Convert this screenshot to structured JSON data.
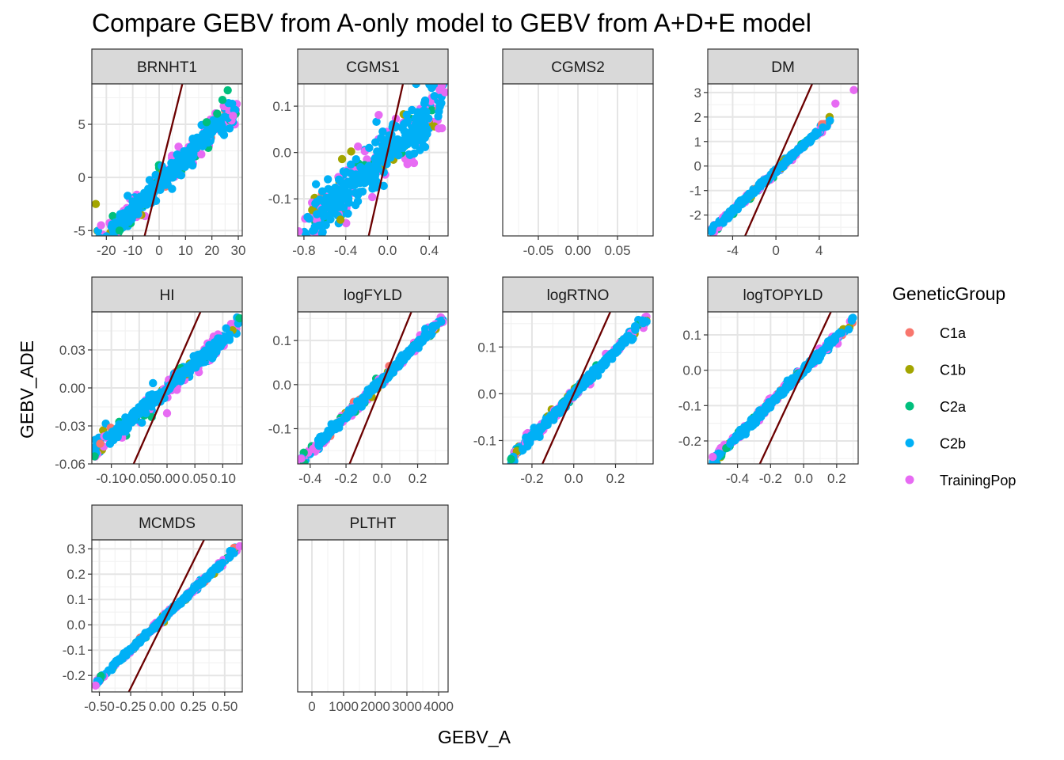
{
  "chart_data": {
    "type": "scatter",
    "title": "Compare GEBV from A-only model to GEBV from A+D+E model",
    "xlabel": "GEBV_A",
    "ylabel": "GEBV_ADE",
    "grid": true,
    "legend": {
      "title": "GeneticGroup",
      "placement": "right",
      "entries": [
        {
          "name": "C1a",
          "color": "#F8766D"
        },
        {
          "name": "C1b",
          "color": "#A3A500"
        },
        {
          "name": "C2a",
          "color": "#00BF7D"
        },
        {
          "name": "C2b",
          "color": "#00B0F6"
        },
        {
          "name": "TrainingPop",
          "color": "#E76BF3"
        }
      ]
    },
    "reference_line_color": "#6B0000",
    "panels": [
      {
        "name": "BRNHT1",
        "xlim": [
          -25.5,
          31.5
        ],
        "ylim": [
          -5.5,
          8.8
        ],
        "xticks": [
          -20,
          -10,
          0,
          10,
          20,
          30
        ],
        "xtick_labels": [
          "-20",
          "-10",
          "0",
          "10",
          "20",
          "30"
        ],
        "yticks": [
          -5,
          0,
          5
        ],
        "ytick_labels": [
          "-5",
          "0",
          "5"
        ],
        "cloud": {
          "x": [
            -24,
            30
          ],
          "slope": 0.25,
          "intercept": -0.6,
          "spread": 0.7
        },
        "line": {
          "slope": 1,
          "intercept": 0
        },
        "extra_points": [
          {
            "x": -24,
            "y": -2.5,
            "group": "C1b"
          },
          {
            "x": -22,
            "y": -4.5,
            "group": "TrainingPop"
          },
          {
            "x": -15,
            "y": -5.0,
            "group": "C2a"
          },
          {
            "x": 22,
            "y": 6.0,
            "group": "C2a"
          },
          {
            "x": 24,
            "y": 7.3,
            "group": "C2a"
          },
          {
            "x": 26,
            "y": 8.2,
            "group": "C2a"
          },
          {
            "x": 28,
            "y": 5.8,
            "group": "TrainingPop"
          },
          {
            "x": 18,
            "y": 5.2,
            "group": "C2a"
          }
        ]
      },
      {
        "name": "CGMS1",
        "xlim": [
          -0.86,
          0.58
        ],
        "ylim": [
          -0.18,
          0.148
        ],
        "xticks": [
          -0.8,
          -0.4,
          0.0,
          0.4
        ],
        "xtick_labels": [
          "-0.8",
          "-0.4",
          "0.0",
          "0.4"
        ],
        "yticks": [
          -0.1,
          0.0,
          0.1
        ],
        "ytick_labels": [
          "-0.1",
          "0.0",
          "0.1"
        ],
        "cloud": {
          "x": [
            -0.8,
            0.55
          ],
          "slope": 0.2,
          "intercept": 0.0,
          "spread": 0.035
        },
        "line": {
          "slope": 1,
          "intercept": 0
        },
        "extra_points": [
          {
            "x": -0.85,
            "y": -0.17,
            "group": "TrainingPop"
          },
          {
            "x": -0.45,
            "y": -0.145,
            "group": "C1b"
          },
          {
            "x": 0.5,
            "y": 0.135,
            "group": "TrainingPop"
          },
          {
            "x": 0.55,
            "y": 0.13,
            "group": "TrainingPop"
          }
        ]
      },
      {
        "name": "CGMS2",
        "xlim": [
          -0.095,
          0.095
        ],
        "ylim": [
          -1,
          1
        ],
        "xticks": [
          -0.05,
          0.0,
          0.05
        ],
        "xtick_labels": [
          "-0.05",
          "0.00",
          "0.05"
        ],
        "yticks": [],
        "ytick_labels": [],
        "cloud": null,
        "line": null,
        "extra_points": []
      },
      {
        "name": "DM",
        "xlim": [
          -6.3,
          7.6
        ],
        "ylim": [
          -2.85,
          3.35
        ],
        "xticks": [
          -4,
          0,
          4
        ],
        "xtick_labels": [
          "-4",
          "0",
          "4"
        ],
        "yticks": [
          -2,
          -1,
          0,
          1,
          2,
          3
        ],
        "ytick_labels": [
          "-2",
          "-1",
          "0",
          "1",
          "2",
          "3"
        ],
        "cloud": {
          "x": [
            -6,
            5
          ],
          "slope": 0.41,
          "intercept": -0.2,
          "spread": 0.07
        },
        "line": {
          "slope": 1,
          "intercept": 0
        },
        "extra_points": [
          {
            "x": 7.2,
            "y": 3.1,
            "group": "TrainingPop"
          },
          {
            "x": 5.5,
            "y": 2.55,
            "group": "TrainingPop"
          }
        ]
      },
      {
        "name": "HI",
        "xlim": [
          -0.135,
          0.135
        ],
        "ylim": [
          -0.06,
          0.06
        ],
        "xticks": [
          -0.1,
          -0.05,
          0.0,
          0.05,
          0.1
        ],
        "xtick_labels": [
          "-0.10",
          "-0.05",
          "0.00",
          "0.05",
          "0.10"
        ],
        "yticks": [
          -0.06,
          -0.03,
          0.0,
          0.03
        ],
        "ytick_labels": [
          "-0.06",
          "-0.03",
          "0.00",
          "0.03"
        ],
        "cloud": {
          "x": [
            -0.13,
            0.13
          ],
          "slope": 0.38,
          "intercept": 0.0,
          "spread": 0.004
        },
        "line": {
          "slope": 1,
          "intercept": 0
        },
        "extra_points": [
          {
            "x": -0.13,
            "y": -0.054,
            "group": "C2a"
          },
          {
            "x": -0.12,
            "y": -0.044,
            "group": "C1a"
          },
          {
            "x": 0.0,
            "y": -0.02,
            "group": "TrainingPop"
          },
          {
            "x": 0.13,
            "y": 0.055,
            "group": "C2a"
          }
        ]
      },
      {
        "name": "logFYLD",
        "xlim": [
          -0.47,
          0.37
        ],
        "ylim": [
          -0.18,
          0.165
        ],
        "xticks": [
          -0.4,
          -0.2,
          0.0,
          0.2
        ],
        "xtick_labels": [
          "-0.4",
          "-0.2",
          "0.0",
          "0.2"
        ],
        "yticks": [
          -0.1,
          0.0,
          0.1
        ],
        "ytick_labels": [
          "-0.1",
          "0.0",
          "0.1"
        ],
        "cloud": {
          "x": [
            -0.45,
            0.35
          ],
          "slope": 0.41,
          "intercept": 0.01,
          "spread": 0.006
        },
        "line": {
          "slope": 1,
          "intercept": 0
        },
        "extra_points": [
          {
            "x": -0.45,
            "y": -0.168,
            "group": "TrainingPop"
          }
        ]
      },
      {
        "name": "logRTNO",
        "xlim": [
          -0.34,
          0.38
        ],
        "ylim": [
          -0.15,
          0.175
        ],
        "xticks": [
          -0.2,
          0.0,
          0.2
        ],
        "xtick_labels": [
          "-0.2",
          "0.0",
          "0.2"
        ],
        "yticks": [
          -0.1,
          0.0,
          0.1
        ],
        "ytick_labels": [
          "-0.1",
          "0.0",
          "0.1"
        ],
        "cloud": {
          "x": [
            -0.3,
            0.35
          ],
          "slope": 0.46,
          "intercept": 0.0,
          "spread": 0.006
        },
        "line": {
          "slope": 1,
          "intercept": 0
        },
        "extra_points": [
          {
            "x": -0.3,
            "y": -0.14,
            "group": "C2a"
          }
        ]
      },
      {
        "name": "logTOPYLD",
        "xlim": [
          -0.58,
          0.33
        ],
        "ylim": [
          -0.265,
          0.165
        ],
        "xticks": [
          -0.4,
          -0.2,
          0.0,
          0.2
        ],
        "xtick_labels": [
          "-0.4",
          "-0.2",
          "0.0",
          "0.2"
        ],
        "yticks": [
          -0.2,
          -0.1,
          0.0,
          0.1
        ],
        "ytick_labels": [
          "-0.2",
          "-0.1",
          "0.0",
          "0.1"
        ],
        "cloud": {
          "x": [
            -0.55,
            0.3
          ],
          "slope": 0.47,
          "intercept": 0.0,
          "spread": 0.007
        },
        "line": {
          "slope": 1,
          "intercept": 0
        },
        "extra_points": [
          {
            "x": -0.55,
            "y": -0.245,
            "group": "TrainingPop"
          }
        ]
      },
      {
        "name": "MCMDS",
        "xlim": [
          -0.56,
          0.64
        ],
        "ylim": [
          -0.265,
          0.335
        ],
        "xticks": [
          -0.5,
          -0.25,
          0.0,
          0.25,
          0.5
        ],
        "xtick_labels": [
          "-0.50",
          "-0.25",
          "0.00",
          "0.25",
          "0.50"
        ],
        "yticks": [
          -0.2,
          -0.1,
          0.0,
          0.1,
          0.2,
          0.3
        ],
        "ytick_labels": [
          "-0.2",
          "-0.1",
          "0.0",
          "0.1",
          "0.2",
          "0.3"
        ],
        "cloud": {
          "x": [
            -0.53,
            0.6
          ],
          "slope": 0.47,
          "intercept": 0.02,
          "spread": 0.006
        },
        "line": {
          "slope": 1,
          "intercept": 0
        },
        "extra_points": [
          {
            "x": 0.62,
            "y": 0.31,
            "group": "TrainingPop"
          },
          {
            "x": -0.53,
            "y": -0.24,
            "group": "TrainingPop"
          }
        ]
      },
      {
        "name": "PLTHT",
        "xlim": [
          -450,
          4300
        ],
        "ylim": [
          -1,
          1
        ],
        "xticks": [
          0,
          1000,
          2000,
          3000,
          4000
        ],
        "xtick_labels": [
          "0",
          "1000",
          "2000",
          "3000",
          "4000"
        ],
        "yticks": [],
        "ytick_labels": [],
        "cloud": null,
        "line": null,
        "extra_points": []
      }
    ]
  }
}
